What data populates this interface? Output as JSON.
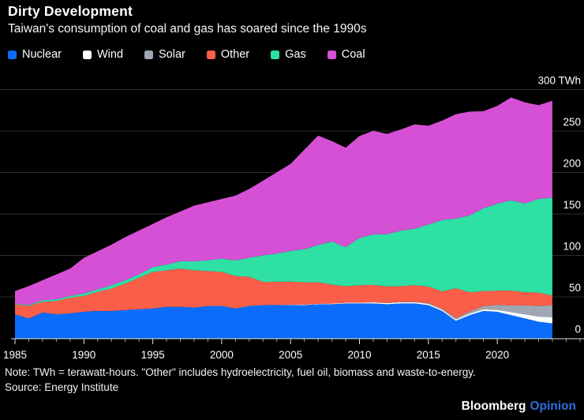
{
  "header": {
    "title": "Dirty Development",
    "subtitle": "Taiwan's consumption of coal and gas has soared since the 1990s"
  },
  "footer": {
    "note": "Note: TWh = terawatt-hours. \"Other\" includes hydroelectricity, fuel oil, biomass and waste-to-energy.",
    "source": "Source: Energy Institute",
    "brand": "Bloomberg",
    "brand_suffix": "Opinion"
  },
  "colors": {
    "background": "#000000",
    "grid": "#2d2d2d",
    "axis": "#e0e0e0",
    "text": "#ffffff",
    "opinion_blue": "#2e6fe0"
  },
  "chart_data": {
    "type": "area",
    "stacked": true,
    "title": "Dirty Development",
    "subtitle": "Taiwan's consumption of coal and gas has soared since the 1990s",
    "unit": "TWh",
    "grid": true,
    "legend_position": "top",
    "ylim": [
      0,
      300
    ],
    "y_ticks": [
      0,
      50,
      100,
      150,
      200,
      250,
      300
    ],
    "y_top_label": "300 TWh",
    "x_ticks": [
      1985,
      1990,
      1995,
      2000,
      2005,
      2010,
      2015,
      2020
    ],
    "x": [
      1985,
      1986,
      1987,
      1988,
      1989,
      1990,
      1991,
      1992,
      1993,
      1994,
      1995,
      1996,
      1997,
      1998,
      1999,
      2000,
      2001,
      2002,
      2003,
      2004,
      2005,
      2006,
      2007,
      2008,
      2009,
      2010,
      2011,
      2012,
      2013,
      2014,
      2015,
      2016,
      2017,
      2018,
      2019,
      2020,
      2021,
      2022,
      2023,
      2024
    ],
    "series": [
      {
        "name": "Nuclear",
        "color": "#0b6cfb",
        "values": [
          29,
          24,
          31,
          29,
          30,
          32,
          33,
          33,
          34,
          35,
          36,
          38,
          38,
          37,
          39,
          39,
          36,
          39,
          40,
          40,
          40,
          40,
          41,
          41,
          42,
          42,
          42,
          41,
          42,
          42,
          40,
          33,
          21,
          28,
          33,
          32,
          28,
          24,
          20,
          18
        ]
      },
      {
        "name": "Wind",
        "color": "#ffffff",
        "values": [
          0,
          0,
          0,
          0,
          0,
          0,
          0,
          0,
          0,
          0,
          0,
          0,
          0,
          0,
          0,
          0.1,
          0.1,
          0.1,
          0.1,
          0.2,
          0.4,
          0.5,
          0.6,
          0.8,
          0.9,
          1,
          1.3,
          1.4,
          1.5,
          1.5,
          1.5,
          1.5,
          1.7,
          1.7,
          1.9,
          2.3,
          3.5,
          5,
          6.2,
          7.4
        ]
      },
      {
        "name": "Solar",
        "color": "#9fa8b2",
        "values": [
          0,
          0,
          0,
          0,
          0,
          0,
          0,
          0,
          0,
          0,
          0,
          0,
          0,
          0,
          0,
          0,
          0,
          0,
          0,
          0,
          0,
          0,
          0,
          0,
          0,
          0,
          0.1,
          0.2,
          0.4,
          0.6,
          0.9,
          1.1,
          1.7,
          2.7,
          4,
          6.1,
          8,
          10.7,
          12.9,
          14.2
        ]
      },
      {
        "name": "Other",
        "color": "#fa5e49",
        "values": [
          12,
          15,
          13,
          16,
          19,
          19,
          23,
          27,
          32,
          38,
          44,
          44,
          46,
          45,
          42,
          41,
          39,
          35,
          28,
          28,
          28,
          27,
          26,
          23,
          20,
          21,
          21,
          20,
          19,
          20,
          20,
          21,
          36,
          23,
          18,
          17,
          18,
          16,
          16,
          12
        ]
      },
      {
        "name": "Gas",
        "color": "#2ee0a4",
        "values": [
          1,
          1,
          2,
          2,
          2,
          3,
          3,
          4,
          4,
          4,
          6,
          7,
          9,
          11,
          13,
          16,
          19,
          23,
          32,
          34,
          37,
          40,
          45,
          52,
          47,
          57,
          61,
          63,
          67,
          68,
          75,
          86,
          84,
          93,
          100,
          105,
          109,
          107,
          113,
          118
        ]
      },
      {
        "name": "Coal",
        "color": "#d650d6",
        "values": [
          15,
          23,
          24,
          30,
          33,
          43,
          46,
          49,
          52,
          53,
          52,
          57,
          60,
          67,
          70,
          72,
          78,
          83,
          90,
          98,
          105,
          120,
          132,
          121,
          120,
          123,
          125,
          121,
          122,
          126,
          119,
          120,
          126,
          125,
          117,
          118,
          124,
          122,
          113,
          117
        ]
      }
    ]
  }
}
